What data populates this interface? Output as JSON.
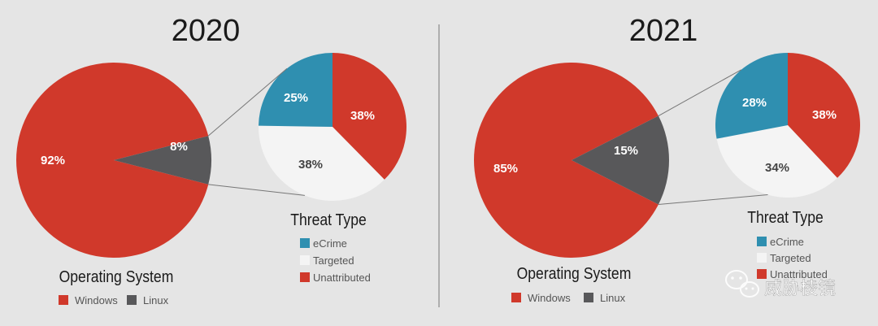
{
  "colors": {
    "background": "#e5e5e5",
    "windows": "#d0392b",
    "linux": "#58585a",
    "ecrime": "#2f8fb0",
    "targeted": "#f4f4f4",
    "unattributed": "#d0392b",
    "divider": "#8a8a8a"
  },
  "chart_data": [
    {
      "type": "pie",
      "title": "2020",
      "subtitle": "Operating System",
      "slices": [
        {
          "label": "Windows",
          "value": 92,
          "display": "92%"
        },
        {
          "label": "Linux",
          "value": 8,
          "display": "8%"
        }
      ],
      "legend": [
        "Windows",
        "Linux"
      ],
      "legend_position": "bottom"
    },
    {
      "type": "pie",
      "title": "",
      "subtitle": "Threat Type",
      "breakdown_of": "Linux",
      "slices": [
        {
          "label": "Unattributed",
          "value": 38,
          "display": "38%"
        },
        {
          "label": "Targeted",
          "value": 38,
          "display": "38%"
        },
        {
          "label": "eCrime",
          "value": 25,
          "display": "25%"
        }
      ],
      "legend": [
        "eCrime",
        "Targeted",
        "Unattributed"
      ],
      "legend_position": "bottom"
    },
    {
      "type": "pie",
      "title": "2021",
      "subtitle": "Operating System",
      "slices": [
        {
          "label": "Windows",
          "value": 85,
          "display": "85%"
        },
        {
          "label": "Linux",
          "value": 15,
          "display": "15%"
        }
      ],
      "legend": [
        "Windows",
        "Linux"
      ],
      "legend_position": "bottom"
    },
    {
      "type": "pie",
      "title": "",
      "subtitle": "Threat Type",
      "breakdown_of": "Linux",
      "slices": [
        {
          "label": "Unattributed",
          "value": 38,
          "display": "38%"
        },
        {
          "label": "Targeted",
          "value": 34,
          "display": "34%"
        },
        {
          "label": "eCrime",
          "value": 28,
          "display": "28%"
        }
      ],
      "legend": [
        "eCrime",
        "Targeted",
        "Unattributed"
      ],
      "legend_position": "bottom"
    }
  ],
  "watermark": {
    "text": "威胁棱镜",
    "icon": "wechat-icon"
  }
}
